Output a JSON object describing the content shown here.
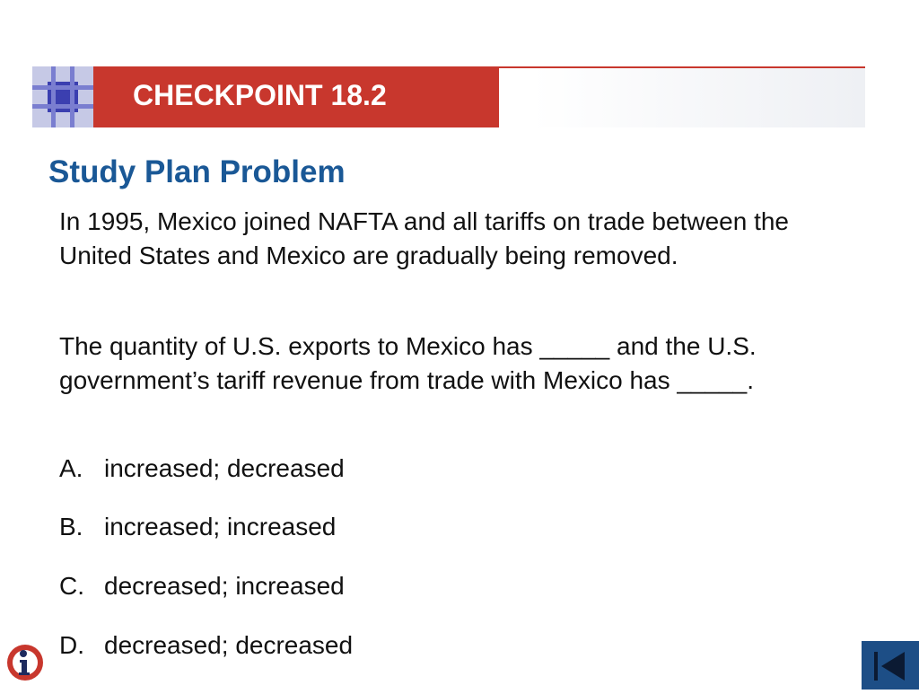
{
  "header": {
    "checkpoint_label": "CHECKPOINT 18.2",
    "accent_color": "#c8372d",
    "logo_color": "#3b3fb0"
  },
  "content": {
    "title": "Study Plan Problem",
    "title_color": "#1a5896",
    "paragraphs": [
      "In 1995, Mexico joined NAFTA and all tariffs on trade between the United States and Mexico are gradually being removed.",
      "The quantity of U.S. exports to Mexico has _____ and the U.S. government’s tariff revenue from trade with Mexico has _____."
    ],
    "options": [
      {
        "letter": "A.",
        "text": "increased; decreased"
      },
      {
        "letter": "B.",
        "text": "increased; increased"
      },
      {
        "letter": "C.",
        "text": "decreased; increased"
      },
      {
        "letter": "D.",
        "text": "decreased; decreased"
      }
    ]
  },
  "footer": {
    "info_icon": "info-icon",
    "nav_icon": "skip-to-start-icon",
    "nav_color": "#1d4e86"
  }
}
